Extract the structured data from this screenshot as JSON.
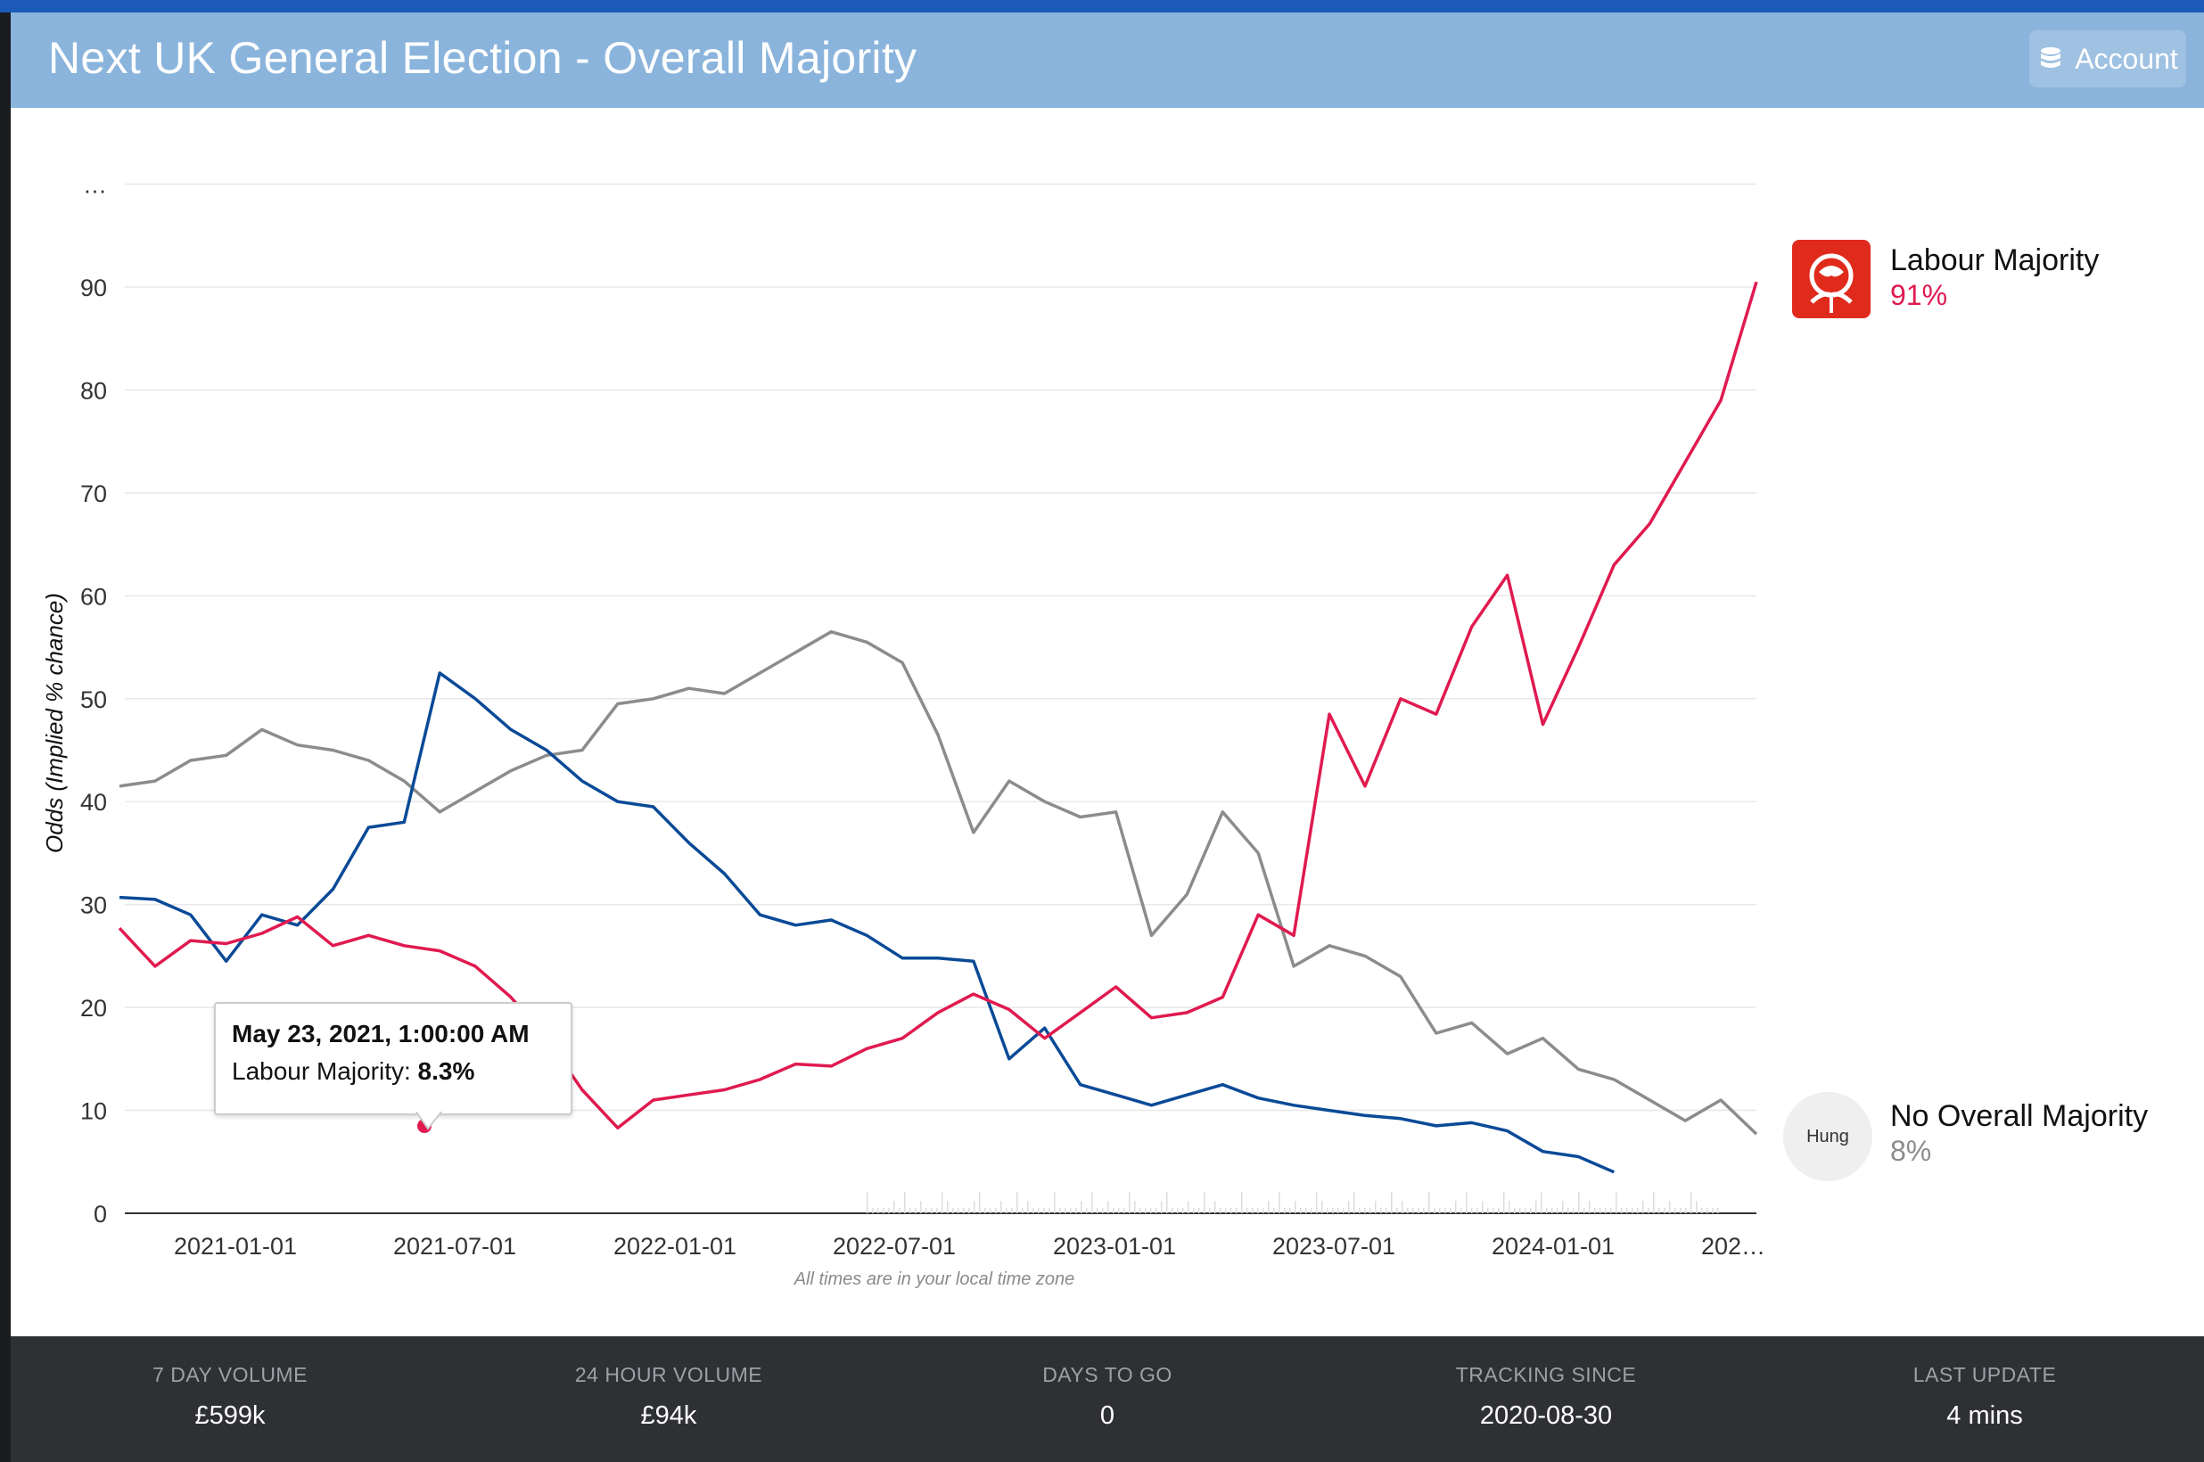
{
  "header": {
    "title": "Next UK General Election - Overall Majority",
    "account_label": "Account",
    "account_icon": "database-icon"
  },
  "chart_data": {
    "type": "line",
    "ylabel": "Odds (Implied % chance)",
    "y_ticks": [
      "0",
      "10",
      "20",
      "30",
      "40",
      "50",
      "60",
      "70",
      "80",
      "90",
      "…"
    ],
    "ylim": [
      0,
      100
    ],
    "x_ticks": [
      "2021-01-01",
      "2021-07-01",
      "2022-01-01",
      "2022-07-01",
      "2023-01-01",
      "2023-07-01",
      "2024-01-01",
      "202…"
    ],
    "x_note": "All times are in your local time zone",
    "grid": true,
    "colors": {
      "labour": "#e01a4f",
      "conservative": "#0a4a97",
      "no_overall": "#8c8c8c"
    },
    "series": [
      {
        "name": "Labour Majority",
        "color": "#e01a4f",
        "x": [
          0,
          1,
          2,
          3,
          4,
          5,
          6,
          7,
          8,
          9,
          10,
          11,
          12,
          13,
          14,
          15,
          16,
          17,
          18,
          19,
          20,
          21,
          22,
          23,
          24,
          25,
          26,
          27,
          28,
          29,
          30,
          31,
          32,
          33,
          34,
          35,
          36,
          37,
          38,
          39,
          40,
          41,
          42,
          43,
          44,
          45,
          46
        ],
        "y": [
          27.7,
          24,
          26.5,
          26.2,
          27.2,
          28.8,
          26,
          27,
          26,
          25.5,
          24,
          21,
          17,
          12,
          8.3,
          11,
          11.5,
          12,
          13,
          14.5,
          14.3,
          16,
          17,
          19.5,
          21.3,
          19.8,
          17,
          19.5,
          22,
          19,
          19.5,
          21,
          29,
          27,
          48.5,
          41.5,
          50,
          48.5,
          57,
          62,
          47.5,
          55,
          63,
          67,
          73,
          79,
          90.5
        ]
      },
      {
        "name": "",
        "color": "#0a4a97",
        "x": [
          0,
          1,
          2,
          3,
          4,
          5,
          6,
          7,
          8,
          9,
          10,
          11,
          12,
          13,
          14,
          15,
          16,
          17,
          18,
          19,
          20,
          21,
          22,
          23,
          24,
          25,
          26,
          27,
          28,
          29,
          30,
          31,
          32,
          33,
          34,
          35,
          36,
          37,
          38,
          39,
          40,
          41,
          42
        ],
        "y": [
          30.7,
          30.5,
          29,
          24.5,
          29,
          28,
          31.5,
          37.5,
          38,
          52.5,
          50,
          47,
          45,
          42,
          40,
          39.5,
          36,
          33,
          29,
          28,
          28.5,
          27,
          24.8,
          24.8,
          24.5,
          15,
          18,
          12.5,
          11.5,
          10.5,
          11.5,
          12.5,
          11.2,
          10.5,
          10,
          9.5,
          9.2,
          8.5,
          8.8,
          8,
          6,
          5.5,
          4
        ]
      },
      {
        "name": "No Overall Majority",
        "color": "#8c8c8c",
        "x": [
          0,
          1,
          2,
          3,
          4,
          5,
          6,
          7,
          8,
          9,
          10,
          11,
          12,
          13,
          14,
          15,
          16,
          17,
          18,
          19,
          20,
          21,
          22,
          23,
          24,
          25,
          26,
          27,
          28,
          29,
          30,
          31,
          32,
          33,
          34,
          35,
          36,
          37,
          38,
          39,
          40,
          41,
          42,
          43,
          44,
          45,
          46
        ],
        "y": [
          41.5,
          42,
          44,
          44.5,
          47,
          45.5,
          45,
          44,
          42,
          39,
          41,
          43,
          44.5,
          45,
          49.5,
          50,
          51,
          50.5,
          52.5,
          54.5,
          56.5,
          55.5,
          53.5,
          46.5,
          37,
          42,
          40,
          38.5,
          39,
          27,
          31,
          39,
          35,
          24,
          26,
          25,
          23,
          17.5,
          18.5,
          15.5,
          17,
          14,
          13,
          11,
          9,
          11,
          7.7
        ]
      }
    ]
  },
  "tooltip": {
    "date": "May 23, 2021, 1:00:00 AM",
    "series": "Labour Majority:",
    "value": "8.3%"
  },
  "legend": [
    {
      "name": "Labour Majority",
      "pct": "91%",
      "color": "#e01a4f",
      "icon": "labour-rose-icon"
    },
    {
      "name": "No Overall Majority",
      "pct": "8%",
      "color": "#8c8c8c",
      "icon_label": "Hung"
    }
  ],
  "footer": [
    {
      "label": "7 DAY VOLUME",
      "value": "£599k"
    },
    {
      "label": "24 HOUR VOLUME",
      "value": "£94k"
    },
    {
      "label": "DAYS TO GO",
      "value": "0"
    },
    {
      "label": "TRACKING SINCE",
      "value": "2020-08-30"
    },
    {
      "label": "LAST UPDATE",
      "value": "4 mins"
    }
  ]
}
